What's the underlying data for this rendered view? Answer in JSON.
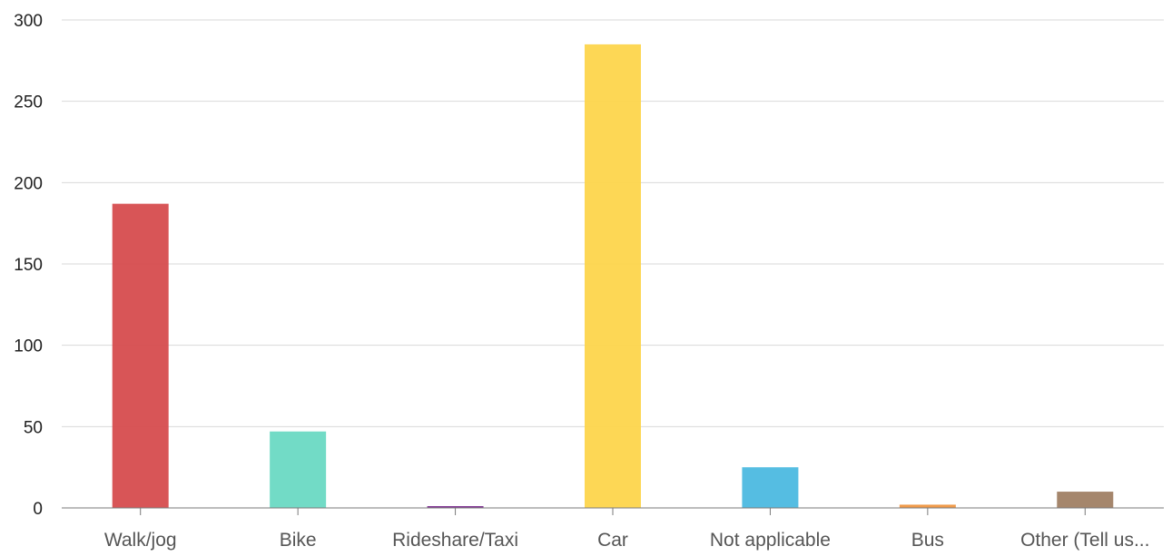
{
  "chart_data": {
    "type": "bar",
    "categories": [
      "Walk/jog",
      "Bike",
      "Rideshare/Taxi",
      "Car",
      "Not applicable",
      "Bus",
      "Other (Tell us..."
    ],
    "values": [
      187,
      47,
      1,
      285,
      25,
      2,
      10
    ],
    "colors": [
      "#d64c4e",
      "#6ad9c3",
      "#7b2d8e",
      "#fdd54c",
      "#4cb9e0",
      "#ef9540",
      "#a08064"
    ],
    "ylim": [
      0,
      300
    ],
    "yticks": [
      0,
      50,
      100,
      150,
      200,
      250,
      300
    ],
    "title": "",
    "xlabel": "",
    "ylabel": "",
    "grid": true,
    "legend": "none"
  }
}
